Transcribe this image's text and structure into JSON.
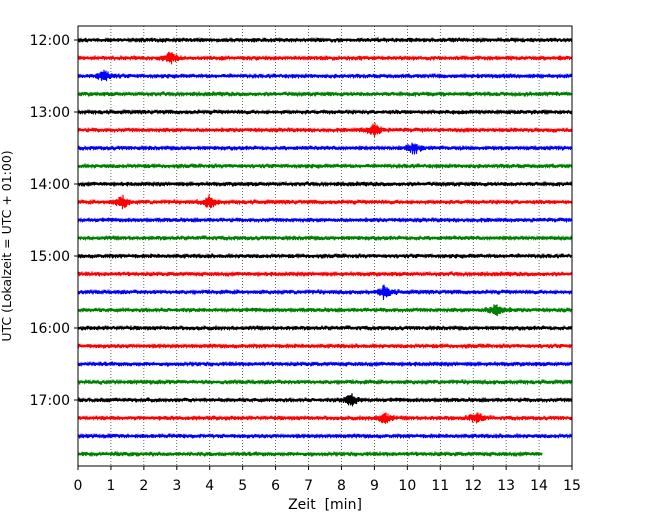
{
  "chart_data": {
    "type": "line",
    "subtype": "helicorder-seismogram",
    "title": "",
    "xlabel": "Zeit  [min]",
    "ylabel": "UTC (Lokalzeit = UTC + 01:00)",
    "xlim": [
      0,
      15
    ],
    "x_ticks": [
      0,
      1,
      2,
      3,
      4,
      5,
      6,
      7,
      8,
      9,
      10,
      11,
      12,
      13,
      14,
      15
    ],
    "grid": {
      "x": "dotted",
      "y": "none"
    },
    "y_ticks": [
      "12:00",
      "13:00",
      "14:00",
      "15:00",
      "16:00",
      "17:00"
    ],
    "trace_interval_min": 15,
    "trace_colors": [
      "#000000",
      "#ff0000",
      "#0000ff",
      "#008000"
    ],
    "traces": [
      {
        "start": "12:00",
        "end_min": 15
      },
      {
        "start": "12:15",
        "end_min": 15
      },
      {
        "start": "12:30",
        "end_min": 15
      },
      {
        "start": "12:45",
        "end_min": 15
      },
      {
        "start": "13:00",
        "end_min": 15
      },
      {
        "start": "13:15",
        "end_min": 15
      },
      {
        "start": "13:30",
        "end_min": 15
      },
      {
        "start": "13:45",
        "end_min": 15
      },
      {
        "start": "14:00",
        "end_min": 15
      },
      {
        "start": "14:15",
        "end_min": 15
      },
      {
        "start": "14:30",
        "end_min": 15
      },
      {
        "start": "14:45",
        "end_min": 15
      },
      {
        "start": "15:00",
        "end_min": 15
      },
      {
        "start": "15:15",
        "end_min": 15
      },
      {
        "start": "15:30",
        "end_min": 15
      },
      {
        "start": "15:45",
        "end_min": 15
      },
      {
        "start": "16:00",
        "end_min": 15
      },
      {
        "start": "16:15",
        "end_min": 15
      },
      {
        "start": "16:30",
        "end_min": 15
      },
      {
        "start": "16:45",
        "end_min": 15
      },
      {
        "start": "17:00",
        "end_min": 15
      },
      {
        "start": "17:15",
        "end_min": 15
      },
      {
        "start": "17:30",
        "end_min": 15
      },
      {
        "start": "17:45",
        "end_min": 14.1
      }
    ],
    "events": [
      {
        "trace": "12:15",
        "min": 2.8
      },
      {
        "trace": "12:30",
        "min": 0.8
      },
      {
        "trace": "13:15",
        "min": 9.0
      },
      {
        "trace": "13:30",
        "min": 10.2
      },
      {
        "trace": "14:15",
        "min": 1.35
      },
      {
        "trace": "14:15",
        "min": 4.0
      },
      {
        "trace": "15:30",
        "min": 9.3
      },
      {
        "trace": "15:45",
        "min": 12.7
      },
      {
        "trace": "17:00",
        "min": 8.3
      },
      {
        "trace": "17:15",
        "min": 9.3
      },
      {
        "trace": "17:15",
        "min": 12.1
      }
    ]
  }
}
